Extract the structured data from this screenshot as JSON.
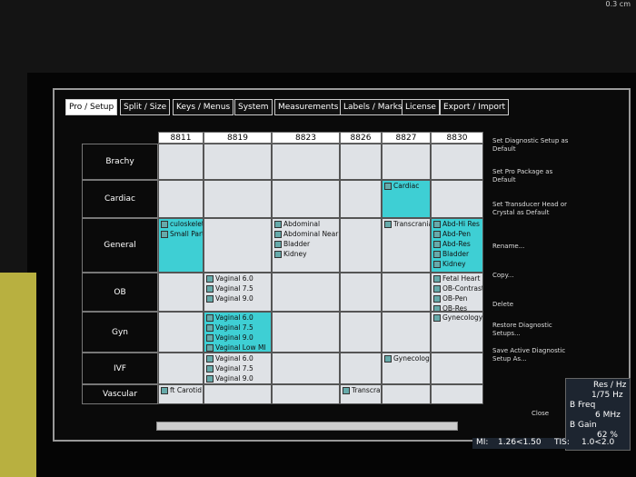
{
  "corner_label": "0.3 cm",
  "tabs": [
    "Pro / Setup",
    "Split / Size",
    "Keys / Menus",
    "System",
    "Measurements",
    "Labels / Marks",
    "License",
    "Export / Import"
  ],
  "grid": {
    "columns": [
      "8811",
      "8819",
      "8823",
      "8826",
      "8827",
      "8830"
    ],
    "rows": [
      {
        "name": "Brachy",
        "cells": [
          [],
          [],
          [],
          [],
          [],
          []
        ]
      },
      {
        "name": "Cardiac",
        "cells": [
          [],
          [],
          [],
          [],
          {
            "highlight": true,
            "items": [
              "Cardiac"
            ]
          },
          []
        ]
      },
      {
        "name": "General",
        "cells": [
          {
            "highlight": true,
            "items": [
              "culoskeletal",
              "Small Part"
            ]
          },
          [],
          [
            "Abdominal",
            "Abdominal Near",
            "Bladder",
            "Kidney"
          ],
          [],
          [
            "Transcranial"
          ],
          {
            "highlight": true,
            "items": [
              "Abd-Hi Res",
              "Abd-Pen",
              "Abd-Res",
              "Bladder",
              "Kidney"
            ]
          }
        ]
      },
      {
        "name": "OB",
        "cells": [
          [],
          [
            "Vaginal 6.0",
            "Vaginal 7.5",
            "Vaginal 9.0"
          ],
          [],
          [],
          [],
          [
            "Fetal Heart",
            "OB-Contrast",
            "OB-Pen",
            "OB-Res"
          ]
        ]
      },
      {
        "name": "Gyn",
        "cells": [
          [],
          {
            "highlight": true,
            "items": [
              "Vaginal 6.0",
              "Vaginal 7.5",
              "Vaginal 9.0",
              "Vaginal Low MI"
            ]
          },
          [],
          [],
          [],
          [
            "Gynecology"
          ]
        ]
      },
      {
        "name": "IVF",
        "cells": [
          [],
          [
            "Vaginal 6.0",
            "Vaginal 7.5",
            "Vaginal 9.0"
          ],
          [],
          [],
          [
            "Gynecology"
          ],
          []
        ]
      },
      {
        "name": "Vascular",
        "cells": [
          [
            "ft Carotid"
          ],
          [],
          [],
          [
            "Transcranial"
          ],
          [],
          []
        ]
      }
    ]
  },
  "actions": [
    "Set Diagnostic Setup as Default",
    "Set Pro Package as Default",
    "Set Transducer Head or Crystal as Default",
    "Rename...",
    "Copy...",
    "Delete",
    "Restore Diagnostic Setups...",
    "Save Active Diagnostic Setup As..."
  ],
  "close": "Close",
  "status": {
    "res_label": "Res / Hz",
    "res": "1/75 Hz",
    "freq_label": "B Freq",
    "freq": "6 MHz",
    "gain_label": "B Gain",
    "gain": "62 %",
    "mi_label": "MI:",
    "mi": "1.26<1.50",
    "tis_label": "TIS:",
    "tis": "1.0<2.0"
  }
}
